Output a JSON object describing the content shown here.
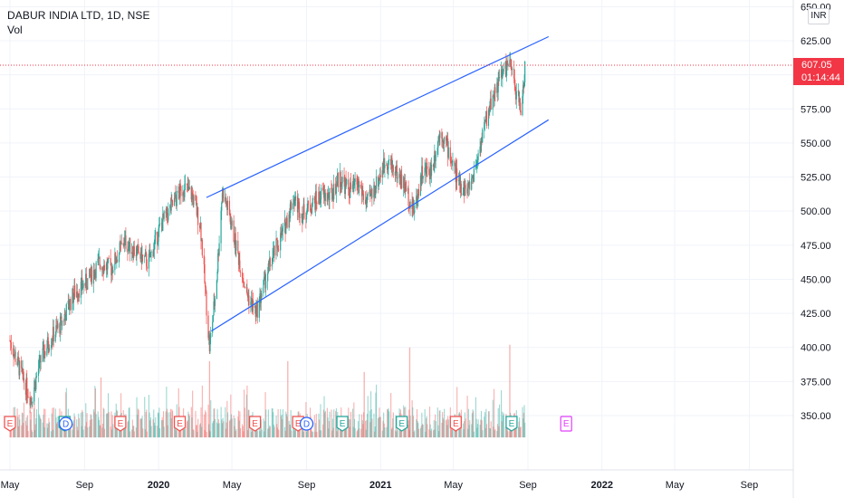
{
  "legend": {
    "title": "DABUR INDIA LTD, 1D, NSE",
    "volume": "Vol"
  },
  "currency": "INR",
  "last_price": {
    "value": "607.05",
    "countdown": "01:14:44"
  },
  "colors": {
    "up": "#26a69a",
    "down": "#ef5350",
    "channel": "#2962ff",
    "last_price": "#f23645",
    "earnings_red": "#ef5350",
    "earnings_green": "#26a69a",
    "earnings_future": "#e040fb",
    "dividend": "#2962ff",
    "grid": "#f0f3fa",
    "axis_line": "#e0e3eb"
  },
  "chart_data": {
    "type": "candlestick",
    "title": "DABUR INDIA LTD, 1D, NSE",
    "price_axis": {
      "ticks": [
        350,
        375,
        400,
        425,
        450,
        475,
        500,
        525,
        550,
        575,
        600,
        625,
        650
      ],
      "labels": [
        "350.00",
        "375.00",
        "400.00",
        "425.00",
        "450.00",
        "475.00",
        "500.00",
        "525.00",
        "550.00",
        "575.00",
        "600.00",
        "625.00",
        "650.00"
      ]
    },
    "time_axis": {
      "ticks": [
        "2019-05-01",
        "2019-09-01",
        "2020-01-01",
        "2020-05-01",
        "2020-09-01",
        "2021-01-01",
        "2021-05-01",
        "2021-09-01",
        "2022-01-01",
        "2022-05-01",
        "2022-09-01"
      ],
      "labels": [
        "May",
        "Sep",
        "2020",
        "May",
        "Sep",
        "2021",
        "May",
        "Sep",
        "2022",
        "May",
        "Sep"
      ]
    },
    "price_path": [
      [
        "2019-05-01",
        405
      ],
      [
        "2019-05-20",
        380
      ],
      [
        "2019-06-05",
        362
      ],
      [
        "2019-06-20",
        390
      ],
      [
        "2019-07-05",
        405
      ],
      [
        "2019-07-25",
        418
      ],
      [
        "2019-08-15",
        440
      ],
      [
        "2019-09-05",
        448
      ],
      [
        "2019-09-25",
        462
      ],
      [
        "2019-10-15",
        458
      ],
      [
        "2019-11-05",
        478
      ],
      [
        "2019-11-25",
        470
      ],
      [
        "2019-12-15",
        462
      ],
      [
        "2020-01-05",
        490
      ],
      [
        "2020-01-25",
        505
      ],
      [
        "2020-02-10",
        518
      ],
      [
        "2020-02-25",
        512
      ],
      [
        "2020-03-10",
        490
      ],
      [
        "2020-03-25",
        400
      ],
      [
        "2020-04-05",
        445
      ],
      [
        "2020-04-15",
        515
      ],
      [
        "2020-04-25",
        500
      ],
      [
        "2020-05-10",
        470
      ],
      [
        "2020-05-25",
        440
      ],
      [
        "2020-06-10",
        425
      ],
      [
        "2020-06-25",
        450
      ],
      [
        "2020-07-10",
        470
      ],
      [
        "2020-07-25",
        485
      ],
      [
        "2020-08-10",
        510
      ],
      [
        "2020-08-25",
        498
      ],
      [
        "2020-09-10",
        505
      ],
      [
        "2020-09-25",
        512
      ],
      [
        "2020-10-10",
        510
      ],
      [
        "2020-10-25",
        525
      ],
      [
        "2020-11-10",
        515
      ],
      [
        "2020-11-25",
        520
      ],
      [
        "2020-12-10",
        505
      ],
      [
        "2020-12-25",
        520
      ],
      [
        "2021-01-10",
        538
      ],
      [
        "2021-01-25",
        530
      ],
      [
        "2021-02-10",
        518
      ],
      [
        "2021-02-25",
        500
      ],
      [
        "2021-03-10",
        528
      ],
      [
        "2021-03-25",
        530
      ],
      [
        "2021-04-10",
        560
      ],
      [
        "2021-04-25",
        542
      ],
      [
        "2021-05-10",
        520
      ],
      [
        "2021-05-25",
        515
      ],
      [
        "2021-06-05",
        530
      ],
      [
        "2021-06-20",
        560
      ],
      [
        "2021-07-05",
        585
      ],
      [
        "2021-07-20",
        600
      ],
      [
        "2021-08-01",
        610
      ],
      [
        "2021-08-10",
        592
      ],
      [
        "2021-08-20",
        575
      ],
      [
        "2021-08-28",
        607
      ]
    ],
    "volume_spikes": [
      [
        "2019-06-10",
        378
      ],
      [
        "2019-09-28",
        378
      ],
      [
        "2020-03-25",
        390
      ],
      [
        "2020-08-01",
        390
      ],
      [
        "2021-02-18",
        400
      ],
      [
        "2021-08-02",
        402
      ],
      [
        "2020-12-05",
        382
      ]
    ],
    "channel": {
      "upper": [
        [
          "2020-03-20",
          510
        ],
        [
          "2021-10-05",
          628
        ]
      ],
      "lower": [
        [
          "2020-03-28",
          412
        ],
        [
          "2021-10-05",
          567
        ]
      ]
    },
    "last_price_line": 607.05,
    "earnings": [
      {
        "date": "2019-05-01",
        "kind": "red"
      },
      {
        "date": "2019-07-30",
        "kind": "teal"
      },
      {
        "date": "2019-10-30",
        "kind": "red"
      },
      {
        "date": "2020-02-05",
        "kind": "red"
      },
      {
        "date": "2020-06-08",
        "kind": "red"
      },
      {
        "date": "2020-08-18",
        "kind": "red"
      },
      {
        "date": "2020-10-30",
        "kind": "teal"
      },
      {
        "date": "2021-02-05",
        "kind": "teal"
      },
      {
        "date": "2021-05-05",
        "kind": "red"
      },
      {
        "date": "2021-08-05",
        "kind": "teal"
      },
      {
        "date": "2021-11-03",
        "kind": "future"
      }
    ],
    "earnings_label": "E",
    "dividends": [
      "2019-08-01",
      "2020-09-01"
    ],
    "dividend_label": "D",
    "ylim": [
      330,
      655
    ]
  }
}
